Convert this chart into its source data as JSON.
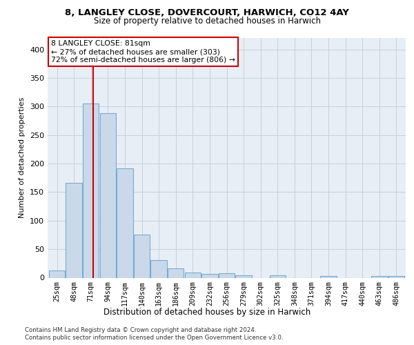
{
  "title1": "8, LANGLEY CLOSE, DOVERCOURT, HARWICH, CO12 4AY",
  "title2": "Size of property relative to detached houses in Harwich",
  "xlabel": "Distribution of detached houses by size in Harwich",
  "ylabel": "Number of detached properties",
  "footer1": "Contains HM Land Registry data © Crown copyright and database right 2024.",
  "footer2": "Contains public sector information licensed under the Open Government Licence v3.0.",
  "annotation_title": "8 LANGLEY CLOSE: 81sqm",
  "annotation_line1": "← 27% of detached houses are smaller (303)",
  "annotation_line2": "72% of semi-detached houses are larger (806) →",
  "bar_color": "#c9d9ea",
  "bar_edge_color": "#7aaace",
  "grid_color": "#c8d0dc",
  "background_color": "#e8eef5",
  "redline_color": "#cc0000",
  "categories": [
    "25sqm",
    "48sqm",
    "71sqm",
    "94sqm",
    "117sqm",
    "140sqm",
    "163sqm",
    "186sqm",
    "209sqm",
    "232sqm",
    "256sqm",
    "279sqm",
    "302sqm",
    "325sqm",
    "348sqm",
    "371sqm",
    "394sqm",
    "417sqm",
    "440sqm",
    "463sqm",
    "486sqm"
  ],
  "values": [
    13,
    166,
    305,
    288,
    191,
    76,
    31,
    16,
    9,
    7,
    8,
    4,
    0,
    4,
    0,
    0,
    3,
    0,
    0,
    3,
    3
  ],
  "ylim": [
    0,
    420
  ],
  "redline_x": 2.15,
  "yticks": [
    0,
    50,
    100,
    150,
    200,
    250,
    300,
    350,
    400
  ]
}
